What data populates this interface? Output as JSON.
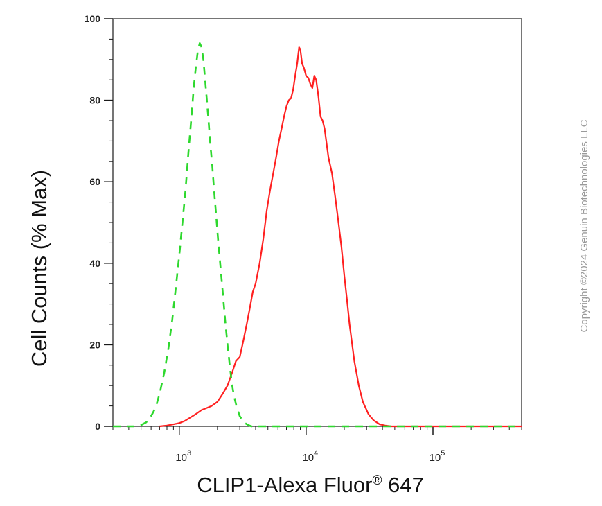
{
  "chart_data": {
    "type": "line",
    "xscale": "log",
    "xlim": [
      300,
      500000
    ],
    "ylim": [
      0,
      100
    ],
    "xlabel": "CLIP1-Alexa Fluor",
    "xlabel_sup": "®",
    "xlabel_suffix": " 647",
    "ylabel": "Cell Counts (% Max)",
    "yticks": [
      "0",
      "20",
      "40",
      "60",
      "80",
      "100"
    ],
    "xticks": [
      {
        "base": "10",
        "exp": "3"
      },
      {
        "base": "10",
        "exp": "4"
      },
      {
        "base": "10",
        "exp": "5"
      }
    ],
    "grid": false,
    "series": [
      {
        "color": "#ff2020",
        "dash": false,
        "x": [
          700,
          800,
          900,
          1000,
          1100,
          1200,
          1350,
          1500,
          1650,
          1800,
          2000,
          2200,
          2400,
          2600,
          2800,
          3000,
          3200,
          3400,
          3600,
          3800,
          4000,
          4300,
          4600,
          4900,
          5200,
          5500,
          5800,
          6100,
          6400,
          6700,
          7000,
          7300,
          7600,
          7900,
          8200,
          8500,
          8800,
          9000,
          9300,
          9600,
          10000,
          10400,
          10800,
          11200,
          11600,
          12000,
          12500,
          13000,
          13500,
          14000,
          15000,
          16000,
          17000,
          18000,
          19000,
          20000,
          21000,
          22000,
          24000,
          26000,
          28000,
          31000,
          34000,
          38000,
          42000,
          47000,
          52000,
          60000,
          80000,
          100000,
          150000,
          200000,
          300000,
          500000
        ],
        "y": [
          0,
          0.2,
          0.5,
          0.8,
          1.3,
          2,
          3,
          4,
          4.5,
          5,
          6,
          8,
          10,
          13,
          16,
          17,
          21,
          25,
          29,
          33,
          35,
          40,
          46,
          53,
          58,
          62,
          66,
          70,
          73,
          76,
          78.5,
          80,
          80.5,
          82.5,
          86,
          89,
          93,
          92.5,
          89,
          88,
          86,
          85.5,
          84,
          83,
          86,
          85,
          81,
          76,
          75,
          73,
          66,
          62,
          56,
          50,
          44,
          37,
          31,
          25,
          16,
          10,
          6,
          3,
          1.5,
          0.5,
          0.2,
          0,
          0,
          0,
          0,
          0,
          0,
          0,
          0,
          0
        ]
      },
      {
        "color": "#2ed82e",
        "dash": true,
        "x": [
          300,
          350,
          400,
          450,
          500,
          550,
          600,
          650,
          700,
          760,
          820,
          880,
          940,
          1000,
          1060,
          1120,
          1180,
          1240,
          1300,
          1350,
          1400,
          1450,
          1500,
          1550,
          1600,
          1650,
          1700,
          1760,
          1820,
          1880,
          1950,
          2020,
          2100,
          2200,
          2300,
          2400,
          2500,
          2600,
          2700,
          2850,
          3000,
          3150,
          3300,
          3500,
          3700,
          4000,
          5000,
          8000,
          20000,
          100000,
          500000
        ],
        "y": [
          0,
          0,
          0,
          0,
          0.3,
          1,
          2.5,
          4.5,
          8,
          13,
          19,
          26,
          34,
          42,
          50,
          58,
          67,
          75,
          83,
          88,
          92,
          94,
          93,
          90,
          85,
          80,
          75,
          69,
          64,
          58,
          52,
          46,
          40,
          33,
          26,
          20,
          15,
          10.5,
          7.5,
          4.5,
          2.5,
          1.5,
          0.8,
          0.3,
          0,
          0,
          0,
          0,
          0,
          0,
          0
        ]
      }
    ]
  },
  "copyright": "Copyright ©2024 Genuin Biotechnologies LLC"
}
